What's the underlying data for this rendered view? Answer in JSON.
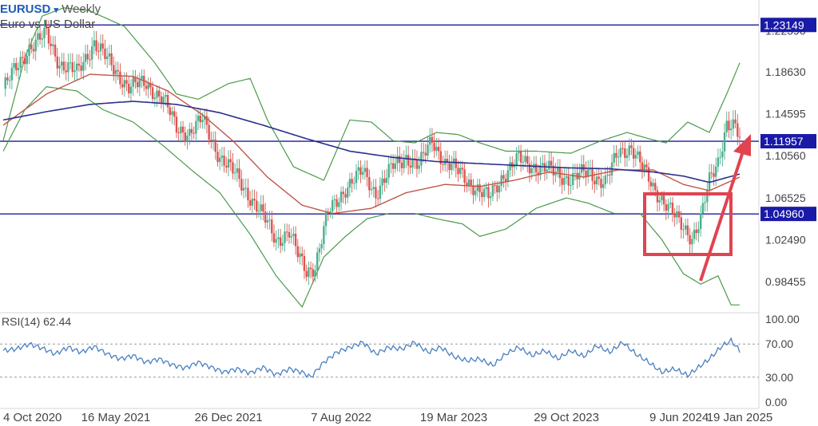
{
  "header": {
    "symbol": "EURUSD",
    "dropdown_icon": "caret-down-icon",
    "timeframe": "Weekly",
    "description": "Euro vs US Dollar"
  },
  "rsi_label": "RSI(14) 62.44",
  "colors": {
    "up_candle": "#4caf8e",
    "down_candle": "#e0534f",
    "bollinger": "#4a9a4a",
    "ma_fast": "#c0564b",
    "ma_slow": "#2a2f8f",
    "hline": "#1c1c9a",
    "badge": "#1a1aa8",
    "annotation": "#e0444f",
    "rsi": "#4a7fc1"
  },
  "chart_data": {
    "type": "candlestick",
    "price_axis_ticks": [
      "1.22590",
      "1.18630",
      "1.14595",
      "1.10560",
      "1.06525",
      "1.02490",
      "0.98455"
    ],
    "price_range": [
      0.9545,
      1.2555
    ],
    "x_axis_labels": [
      "4 Oct 2020",
      "16 May 2021",
      "26 Dec 2021",
      "7 Aug 2022",
      "19 Mar 2023",
      "29 Oct 2023",
      "9 Jun 2024",
      "19 Jan 2025"
    ],
    "horizontal_levels": [
      {
        "value": 1.23149,
        "label": "1.23149"
      },
      {
        "value": 1.11957,
        "label": "1.11957"
      },
      {
        "value": 1.0496,
        "label": "1.04960"
      }
    ],
    "close_path": [
      [
        0,
        1.17
      ],
      [
        12,
        1.21
      ],
      [
        20,
        1.222
      ],
      [
        26,
        1.195
      ],
      [
        34,
        1.185
      ],
      [
        42,
        1.215
      ],
      [
        50,
        1.192
      ],
      [
        58,
        1.172
      ],
      [
        66,
        1.175
      ],
      [
        74,
        1.16
      ],
      [
        80,
        1.132
      ],
      [
        86,
        1.128
      ],
      [
        92,
        1.14
      ],
      [
        100,
        1.105
      ],
      [
        108,
        1.085
      ],
      [
        116,
        1.06
      ],
      [
        122,
        1.04
      ],
      [
        126,
        1.025
      ],
      [
        132,
        1.032
      ],
      [
        136,
        1.01
      ],
      [
        140,
        0.995
      ],
      [
        144,
        1.0
      ],
      [
        150,
        1.05
      ],
      [
        158,
        1.075
      ],
      [
        166,
        1.09
      ],
      [
        172,
        1.07
      ],
      [
        180,
        1.095
      ],
      [
        186,
        1.105
      ],
      [
        192,
        1.095
      ],
      [
        198,
        1.122
      ],
      [
        204,
        1.098
      ],
      [
        212,
        1.088
      ],
      [
        220,
        1.07
      ],
      [
        224,
        1.065
      ],
      [
        230,
        1.085
      ],
      [
        238,
        1.102
      ],
      [
        246,
        1.095
      ],
      [
        254,
        1.09
      ],
      [
        262,
        1.083
      ],
      [
        270,
        1.09
      ],
      [
        278,
        1.08
      ],
      [
        284,
        1.108
      ],
      [
        290,
        1.115
      ],
      [
        296,
        1.09
      ],
      [
        300,
        1.075
      ],
      [
        306,
        1.06
      ],
      [
        312,
        1.04
      ],
      [
        318,
        1.028
      ],
      [
        322,
        1.045
      ],
      [
        326,
        1.08
      ],
      [
        330,
        1.1
      ],
      [
        334,
        1.138
      ],
      [
        338,
        1.132
      ],
      [
        340,
        1.12
      ]
    ],
    "bollinger_upper": [
      [
        0,
        1.12
      ],
      [
        10,
        1.2
      ],
      [
        18,
        1.24
      ],
      [
        28,
        1.248
      ],
      [
        40,
        1.245
      ],
      [
        56,
        1.23
      ],
      [
        70,
        1.195
      ],
      [
        80,
        1.165
      ],
      [
        90,
        1.16
      ],
      [
        104,
        1.175
      ],
      [
        114,
        1.18
      ],
      [
        122,
        1.14
      ],
      [
        134,
        1.095
      ],
      [
        148,
        1.082
      ],
      [
        160,
        1.14
      ],
      [
        170,
        1.138
      ],
      [
        180,
        1.12
      ],
      [
        190,
        1.118
      ],
      [
        200,
        1.128
      ],
      [
        210,
        1.126
      ],
      [
        220,
        1.118
      ],
      [
        232,
        1.11
      ],
      [
        246,
        1.11
      ],
      [
        262,
        1.108
      ],
      [
        276,
        1.12
      ],
      [
        288,
        1.128
      ],
      [
        298,
        1.122
      ],
      [
        306,
        1.118
      ],
      [
        316,
        1.138
      ],
      [
        326,
        1.128
      ],
      [
        334,
        1.165
      ],
      [
        340,
        1.195
      ]
    ],
    "bollinger_lower": [
      [
        0,
        1.11
      ],
      [
        10,
        1.15
      ],
      [
        20,
        1.172
      ],
      [
        34,
        1.168
      ],
      [
        46,
        1.15
      ],
      [
        60,
        1.138
      ],
      [
        74,
        1.115
      ],
      [
        88,
        1.09
      ],
      [
        100,
        1.07
      ],
      [
        114,
        1.03
      ],
      [
        126,
        0.99
      ],
      [
        138,
        0.96
      ],
      [
        148,
        1.008
      ],
      [
        158,
        1.028
      ],
      [
        168,
        1.045
      ],
      [
        178,
        1.05
      ],
      [
        190,
        1.05
      ],
      [
        200,
        1.045
      ],
      [
        212,
        1.04
      ],
      [
        220,
        1.028
      ],
      [
        232,
        1.035
      ],
      [
        246,
        1.055
      ],
      [
        260,
        1.065
      ],
      [
        270,
        1.06
      ],
      [
        282,
        1.05
      ],
      [
        294,
        1.05
      ],
      [
        304,
        1.025
      ],
      [
        314,
        0.992
      ],
      [
        322,
        0.982
      ],
      [
        330,
        0.99
      ],
      [
        336,
        0.962
      ],
      [
        340,
        0.962
      ]
    ],
    "ma_fast": [
      [
        0,
        1.135
      ],
      [
        20,
        1.165
      ],
      [
        40,
        1.184
      ],
      [
        60,
        1.182
      ],
      [
        76,
        1.168
      ],
      [
        92,
        1.145
      ],
      [
        106,
        1.12
      ],
      [
        122,
        1.085
      ],
      [
        138,
        1.058
      ],
      [
        152,
        1.05
      ],
      [
        170,
        1.055
      ],
      [
        186,
        1.07
      ],
      [
        204,
        1.078
      ],
      [
        220,
        1.076
      ],
      [
        236,
        1.082
      ],
      [
        252,
        1.09
      ],
      [
        268,
        1.085
      ],
      [
        284,
        1.092
      ],
      [
        300,
        1.092
      ],
      [
        314,
        1.078
      ],
      [
        326,
        1.072
      ],
      [
        340,
        1.085
      ]
    ],
    "ma_slow": [
      [
        0,
        1.14
      ],
      [
        20,
        1.148
      ],
      [
        40,
        1.155
      ],
      [
        60,
        1.158
      ],
      [
        80,
        1.155
      ],
      [
        100,
        1.147
      ],
      [
        120,
        1.135
      ],
      [
        140,
        1.122
      ],
      [
        160,
        1.11
      ],
      [
        180,
        1.104
      ],
      [
        200,
        1.1
      ],
      [
        220,
        1.098
      ],
      [
        240,
        1.096
      ],
      [
        260,
        1.094
      ],
      [
        280,
        1.093
      ],
      [
        300,
        1.09
      ],
      [
        314,
        1.086
      ],
      [
        326,
        1.08
      ],
      [
        340,
        1.088
      ]
    ],
    "rsi": {
      "label": "RSI(14)",
      "value": 62.44,
      "axis_ticks": [
        "100.00",
        "70.00",
        "30.00",
        "0.00"
      ],
      "range": [
        0,
        100
      ],
      "series": [
        [
          0,
          62
        ],
        [
          6,
          64
        ],
        [
          12,
          70
        ],
        [
          18,
          65
        ],
        [
          24,
          58
        ],
        [
          30,
          66
        ],
        [
          36,
          60
        ],
        [
          42,
          67
        ],
        [
          48,
          58
        ],
        [
          54,
          52
        ],
        [
          60,
          56
        ],
        [
          66,
          48
        ],
        [
          72,
          52
        ],
        [
          78,
          45
        ],
        [
          84,
          41
        ],
        [
          90,
          48
        ],
        [
          96,
          42
        ],
        [
          102,
          36
        ],
        [
          108,
          40
        ],
        [
          114,
          35
        ],
        [
          120,
          42
        ],
        [
          126,
          33
        ],
        [
          132,
          40
        ],
        [
          138,
          36
        ],
        [
          142,
          30
        ],
        [
          148,
          48
        ],
        [
          154,
          60
        ],
        [
          160,
          66
        ],
        [
          166,
          72
        ],
        [
          172,
          58
        ],
        [
          178,
          66
        ],
        [
          184,
          64
        ],
        [
          190,
          72
        ],
        [
          196,
          60
        ],
        [
          202,
          66
        ],
        [
          208,
          55
        ],
        [
          214,
          50
        ],
        [
          220,
          52
        ],
        [
          226,
          44
        ],
        [
          232,
          58
        ],
        [
          238,
          66
        ],
        [
          244,
          56
        ],
        [
          250,
          62
        ],
        [
          256,
          52
        ],
        [
          262,
          62
        ],
        [
          268,
          55
        ],
        [
          274,
          68
        ],
        [
          280,
          60
        ],
        [
          286,
          72
        ],
        [
          292,
          58
        ],
        [
          298,
          48
        ],
        [
          304,
          36
        ],
        [
          310,
          40
        ],
        [
          316,
          32
        ],
        [
          322,
          44
        ],
        [
          326,
          52
        ],
        [
          332,
          68
        ],
        [
          336,
          74
        ],
        [
          340,
          62
        ]
      ]
    }
  }
}
